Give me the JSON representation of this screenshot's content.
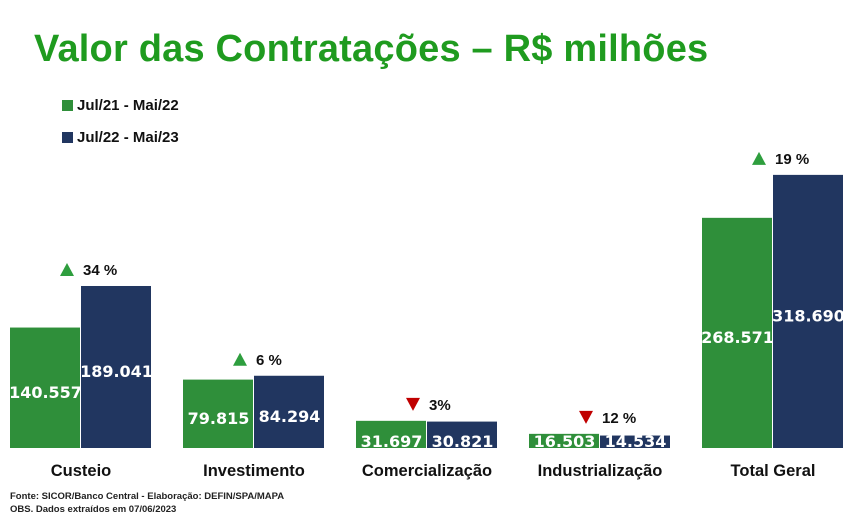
{
  "title": "Valor das Contratações – R$ milhões",
  "footer": {
    "source": "Fonte: SICOR/Banco Central - Elaboração: DEFIN/SPA/MAPA",
    "note": "OBS. Dados extraídos em 07/06/2023"
  },
  "colors": {
    "series1": "#2f8f3a",
    "series2": "#213660",
    "up": "#2e9e3e",
    "down": "#c00000"
  },
  "chart_data": {
    "type": "bar",
    "categories": [
      "Custeio",
      "Investimento",
      "Comercialização",
      "Industrialização",
      "Total Geral"
    ],
    "series": [
      {
        "name": "Jul/21 - Mai/22",
        "values": [
          140.557,
          79.815,
          31.697,
          16.503,
          268.571
        ],
        "labels": [
          "140.557",
          "79.815",
          "31.697",
          "16.503",
          "268.571"
        ]
      },
      {
        "name": "Jul/22 - Mai/23",
        "values": [
          189.041,
          84.294,
          30.821,
          14.534,
          318.69
        ],
        "labels": [
          "189.041",
          "84.294",
          "30.821",
          "14.534",
          "318.690"
        ]
      }
    ],
    "changes": [
      {
        "direction": "up",
        "label": "34 %"
      },
      {
        "direction": "up",
        "label": "6 %"
      },
      {
        "direction": "down",
        "label": "3%"
      },
      {
        "direction": "down",
        "label": "12 %"
      },
      {
        "direction": "up",
        "label": "19 %"
      }
    ],
    "ylim": [
      0,
      360
    ],
    "grid": false,
    "legend": "top-left"
  }
}
